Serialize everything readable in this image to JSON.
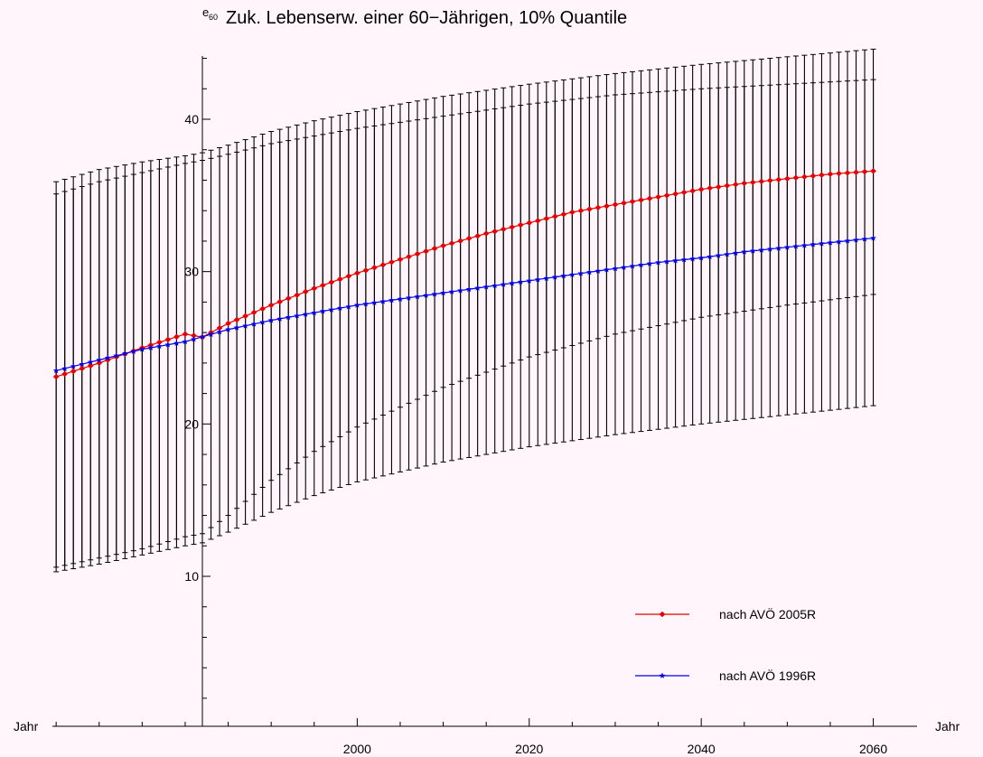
{
  "chart_data": {
    "type": "line",
    "title": "Zuk. Lebenserw. einer 60−Jährigen, 10% Quantile",
    "ylabel": "e",
    "ylabel_sub": "60",
    "xlabel": "Jahr",
    "xlabel_right": "Jahr",
    "xlim": [
      1965,
      2061
    ],
    "ylim": [
      0,
      45
    ],
    "x_ticks": [
      2000,
      2020,
      2040,
      2060
    ],
    "x_tick_labels": [
      "2000",
      "2020",
      "2040",
      "2060"
    ],
    "y_ticks": [
      10,
      20,
      30,
      40
    ],
    "y_tick_labels": [
      "10",
      "20",
      "30",
      "40"
    ],
    "y_axis_at_x": 1982,
    "grid": false,
    "legend_position": "bottom-right",
    "x_start": 1965,
    "x_end": 2060,
    "x_step": 1,
    "series": [
      {
        "name": "nach AVÖ 2005R",
        "color": "#e60000",
        "marker": "diamond",
        "anchors_x": [
          1965,
          1970,
          1975,
          1980,
          1982,
          1985,
          1990,
          1995,
          2000,
          2005,
          2010,
          2015,
          2020,
          2025,
          2030,
          2035,
          2040,
          2045,
          2050,
          2055,
          2060
        ],
        "anchors_y": [
          23.1,
          24.0,
          25.0,
          25.9,
          25.7,
          26.6,
          27.8,
          28.9,
          29.9,
          30.8,
          31.7,
          32.5,
          33.2,
          33.9,
          34.4,
          34.9,
          35.4,
          35.8,
          36.1,
          36.4,
          36.6
        ]
      },
      {
        "name": "nach AVÖ 1996R",
        "color": "#0000e6",
        "marker": "star",
        "anchors_x": [
          1965,
          1970,
          1975,
          1980,
          1985,
          1990,
          1995,
          2000,
          2005,
          2010,
          2015,
          2020,
          2025,
          2030,
          2035,
          2040,
          2045,
          2050,
          2055,
          2060
        ],
        "anchors_y": [
          23.5,
          24.2,
          24.9,
          25.4,
          26.2,
          26.8,
          27.3,
          27.8,
          28.2,
          28.6,
          29.0,
          29.4,
          29.8,
          30.2,
          30.6,
          30.9,
          31.3,
          31.6,
          31.9,
          32.2
        ]
      }
    ],
    "error_bars": [
      {
        "name": "outer",
        "anchors_x": [
          1965,
          1970,
          1975,
          1980,
          1982,
          1985,
          1990,
          1995,
          2000,
          2010,
          2020,
          2030,
          2040,
          2050,
          2060
        ],
        "low": [
          10.3,
          10.8,
          11.4,
          12.0,
          12.2,
          12.9,
          14.2,
          15.3,
          16.2,
          17.5,
          18.5,
          19.3,
          20.0,
          20.6,
          21.2
        ],
        "high": [
          35.9,
          36.7,
          37.2,
          37.6,
          37.8,
          38.3,
          39.2,
          39.9,
          40.5,
          41.5,
          42.3,
          43.0,
          43.6,
          44.1,
          44.6
        ]
      },
      {
        "name": "inner",
        "anchors_x": [
          1965,
          1970,
          1975,
          1980,
          1982,
          1985,
          1990,
          1995,
          2000,
          2010,
          2020,
          2030,
          2040,
          2050,
          2060
        ],
        "low": [
          10.6,
          11.2,
          11.8,
          12.6,
          12.8,
          14.0,
          16.3,
          18.2,
          19.8,
          22.4,
          24.4,
          25.9,
          27.0,
          27.8,
          28.5
        ],
        "high": [
          35.1,
          35.9,
          36.5,
          37.1,
          37.3,
          37.7,
          38.4,
          38.9,
          39.4,
          40.2,
          41.0,
          41.6,
          42.0,
          42.3,
          42.6
        ]
      }
    ]
  }
}
